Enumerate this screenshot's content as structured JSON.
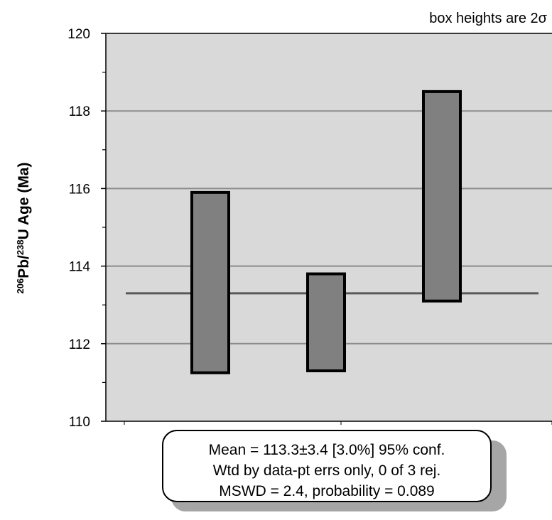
{
  "chart_data": {
    "type": "error-box",
    "ylabel": {
      "sup1": "206",
      "main1": "Pb/",
      "sup2": "238",
      "main2": "U Age (Ma)"
    },
    "ylim": [
      110,
      120
    ],
    "yticks": [
      110,
      112,
      114,
      116,
      118,
      120
    ],
    "note": "box heights are 2σ",
    "mean": 113.3,
    "boxes": [
      {
        "low": 111.25,
        "high": 115.9
      },
      {
        "low": 111.3,
        "high": 113.8
      },
      {
        "low": 113.1,
        "high": 118.5
      }
    ],
    "stats": {
      "line1": "Mean = 113.3±3.4  [3.0%]  95% conf.",
      "line2": "Wtd by data-pt errs only, 0 of 3 rej.",
      "line3": "MSWD = 2.4, probability = 0.089"
    },
    "colors": {
      "plot_bg": "#d9d9d9",
      "box_fill": "#808080",
      "mean_line": "#595959",
      "grid": "#8c8c8c",
      "shadow": "#a6a6a6"
    }
  }
}
